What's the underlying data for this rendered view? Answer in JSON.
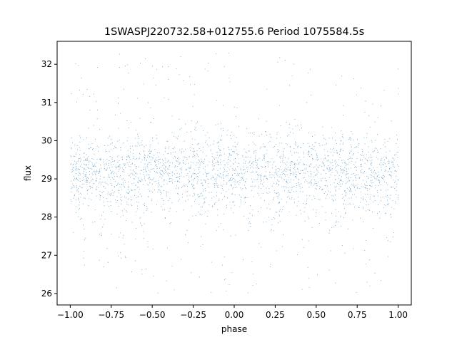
{
  "chart_data": {
    "type": "scatter",
    "title": "1SWASPJ220732.58+012755.6 Period 1075584.5s",
    "xlabel": "phase",
    "ylabel": "flux",
    "xlim": [
      -1.08,
      1.08
    ],
    "ylim": [
      25.7,
      32.6
    ],
    "x_ticks": [
      -1.0,
      -0.75,
      -0.5,
      -0.25,
      0.0,
      0.25,
      0.5,
      0.75,
      1.0
    ],
    "x_tick_labels": [
      "−1.00",
      "−0.75",
      "−0.50",
      "−0.25",
      "0.00",
      "0.25",
      "0.50",
      "0.75",
      "1.00"
    ],
    "y_ticks": [
      26,
      27,
      28,
      29,
      30,
      31,
      32
    ],
    "y_tick_labels": [
      "26",
      "27",
      "28",
      "29",
      "30",
      "31",
      "32"
    ],
    "grid": false,
    "marker_color": "#1f77b4",
    "series": [
      {
        "phase_range": [
          -1.0,
          1.0
        ],
        "median_flux": 29.2,
        "typical_spread": [
          28.2,
          30.2
        ],
        "outlier_range": [
          26.0,
          32.3
        ],
        "dip_phases_approx": [
          -0.93,
          -0.8,
          -0.68,
          -0.55,
          -0.4,
          -0.2,
          0.1,
          0.25,
          0.43,
          0.6,
          0.8,
          0.95
        ]
      }
    ]
  }
}
